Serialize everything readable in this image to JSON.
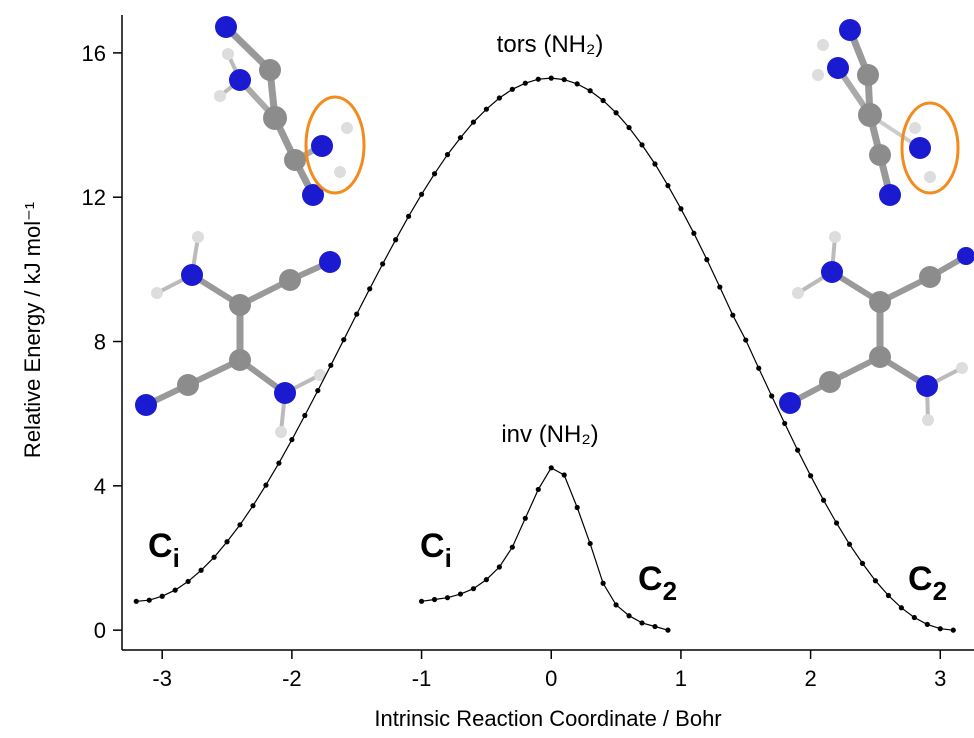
{
  "chart_data": {
    "type": "line",
    "xlabel": "Intrinsic Reaction Coordinate  /  Bohr",
    "ylabel": "Relative Energy  /  kJ mol⁻¹",
    "xlim": [
      -3.31,
      3.26
    ],
    "ylim": [
      -0.55,
      17.05
    ],
    "xticks": [
      -3,
      -2,
      -1,
      0,
      1,
      2,
      3
    ],
    "yticks": [
      0,
      4,
      8,
      12,
      16
    ],
    "color": "#000000",
    "series": [
      {
        "name": "tors (NH₂)",
        "x": [
          -3.2,
          -3.1,
          -3.0,
          -2.9,
          -2.8,
          -2.7,
          -2.6,
          -2.5,
          -2.4,
          -2.3,
          -2.2,
          -2.1,
          -2.0,
          -1.9,
          -1.8,
          -1.7,
          -1.6,
          -1.5,
          -1.4,
          -1.3,
          -1.2,
          -1.1,
          -1.0,
          -0.9,
          -0.8,
          -0.7,
          -0.6,
          -0.5,
          -0.4,
          -0.3,
          -0.2,
          -0.1,
          0.0,
          0.1,
          0.2,
          0.3,
          0.4,
          0.5,
          0.6,
          0.7,
          0.8,
          0.9,
          1.0,
          1.1,
          1.2,
          1.3,
          1.4,
          1.5,
          1.6,
          1.7,
          1.8,
          1.9,
          2.0,
          2.1,
          2.2,
          2.3,
          2.4,
          2.5,
          2.6,
          2.7,
          2.8,
          2.9,
          3.0,
          3.1
        ],
        "values": [
          0.8,
          0.83,
          0.94,
          1.11,
          1.35,
          1.66,
          2.02,
          2.45,
          2.92,
          3.45,
          4.02,
          4.63,
          5.28,
          5.95,
          6.64,
          7.34,
          8.05,
          8.76,
          9.46,
          10.15,
          10.82,
          11.47,
          12.08,
          12.65,
          13.18,
          13.65,
          14.08,
          14.44,
          14.75,
          14.99,
          15.16,
          15.27,
          15.3,
          15.26,
          15.14,
          14.95,
          14.68,
          14.34,
          13.93,
          13.45,
          12.92,
          12.32,
          11.68,
          11.0,
          10.27,
          9.51,
          8.73,
          8.04,
          7.26,
          6.49,
          5.73,
          4.99,
          4.28,
          3.6,
          2.97,
          2.38,
          1.85,
          1.37,
          0.96,
          0.62,
          0.35,
          0.16,
          0.04,
          0.0
        ]
      },
      {
        "name": "inv (NH₂)",
        "x": [
          -1.0,
          -0.9,
          -0.8,
          -0.7,
          -0.6,
          -0.5,
          -0.4,
          -0.3,
          -0.2,
          -0.1,
          0.0,
          0.1,
          0.2,
          0.3,
          0.4,
          0.5,
          0.6,
          0.7,
          0.8,
          0.9
        ],
        "values": [
          0.8,
          0.85,
          0.9,
          1.0,
          1.15,
          1.4,
          1.75,
          2.3,
          3.1,
          3.9,
          4.5,
          4.3,
          3.4,
          2.4,
          1.3,
          0.7,
          0.4,
          0.2,
          0.1,
          0.0
        ]
      }
    ],
    "annotations": [
      {
        "text": "C",
        "sub": "i"
      },
      {
        "text": "C",
        "sub": "i"
      },
      {
        "text": "C",
        "sub": "2"
      },
      {
        "text": "C",
        "sub": "2"
      }
    ]
  }
}
